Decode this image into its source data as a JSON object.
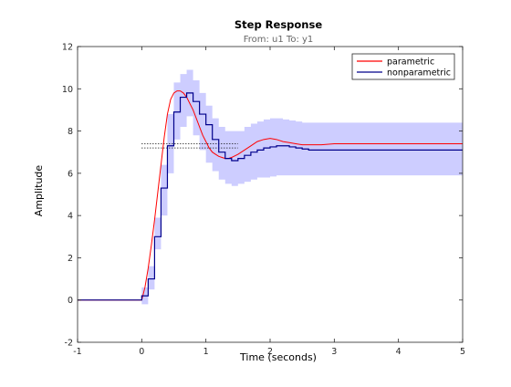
{
  "chart_data": {
    "type": "line",
    "title": "Step Response",
    "subtitle": "From: u1  To: y1",
    "xlabel": "Time (seconds)",
    "ylabel": "Amplitude",
    "xlim": [
      -1,
      5
    ],
    "ylim": [
      -2,
      12
    ],
    "xticks": [
      -1,
      0,
      1,
      2,
      3,
      4,
      5
    ],
    "yticks": [
      -2,
      0,
      2,
      4,
      6,
      8,
      10,
      12
    ],
    "grid": false,
    "legend_position": "top-right",
    "steady_state_markers": [
      7.2,
      7.4
    ],
    "series": [
      {
        "name": "parametric",
        "color": "#ff0000",
        "x": [
          -1,
          0,
          0.05,
          0.1,
          0.15,
          0.2,
          0.25,
          0.3,
          0.35,
          0.4,
          0.45,
          0.5,
          0.55,
          0.6,
          0.65,
          0.7,
          0.75,
          0.8,
          0.85,
          0.9,
          0.95,
          1.0,
          1.05,
          1.1,
          1.15,
          1.2,
          1.25,
          1.3,
          1.35,
          1.4,
          1.5,
          1.6,
          1.7,
          1.8,
          1.9,
          2.0,
          2.1,
          2.2,
          2.3,
          2.4,
          2.5,
          2.6,
          2.7,
          2.8,
          3.0,
          3.2,
          3.4,
          3.6,
          3.8,
          4.0,
          4.2,
          4.4,
          4.6,
          4.8,
          5.0
        ],
        "y": [
          0,
          0,
          0.6,
          1.5,
          2.6,
          3.8,
          5.1,
          6.4,
          7.7,
          8.8,
          9.5,
          9.8,
          9.9,
          9.9,
          9.8,
          9.6,
          9.3,
          9.0,
          8.6,
          8.2,
          7.8,
          7.5,
          7.2,
          7.0,
          6.9,
          6.8,
          6.75,
          6.7,
          6.7,
          6.75,
          6.9,
          7.1,
          7.3,
          7.5,
          7.6,
          7.65,
          7.6,
          7.5,
          7.45,
          7.4,
          7.35,
          7.35,
          7.35,
          7.35,
          7.4,
          7.4,
          7.4,
          7.4,
          7.4,
          7.4,
          7.4,
          7.4,
          7.4,
          7.4,
          7.4
        ]
      },
      {
        "name": "nonparametric",
        "color": "#00008b",
        "step": 0.1,
        "x": [
          -1,
          0,
          0.1,
          0.2,
          0.3,
          0.4,
          0.5,
          0.6,
          0.7,
          0.8,
          0.9,
          1.0,
          1.1,
          1.2,
          1.3,
          1.4,
          1.5,
          1.6,
          1.7,
          1.8,
          1.9,
          2.0,
          2.1,
          2.2,
          2.3,
          2.4,
          2.5,
          2.6,
          2.7,
          2.8,
          2.9,
          3.0,
          3.1,
          3.2,
          3.3,
          3.4,
          3.5,
          3.6,
          3.7,
          3.8,
          3.9,
          4.0,
          4.1,
          4.2,
          4.3,
          4.4,
          4.5,
          4.6,
          4.7,
          4.8,
          4.9
        ],
        "y": [
          0,
          0.2,
          1.0,
          3.0,
          5.3,
          7.3,
          8.9,
          9.6,
          9.8,
          9.4,
          8.8,
          8.3,
          7.6,
          7.0,
          6.7,
          6.6,
          6.7,
          6.85,
          7.0,
          7.1,
          7.2,
          7.25,
          7.3,
          7.3,
          7.25,
          7.2,
          7.15,
          7.1,
          7.1,
          7.1,
          7.1,
          7.1,
          7.1,
          7.1,
          7.1,
          7.1,
          7.1,
          7.1,
          7.1,
          7.1,
          7.1,
          7.1,
          7.1,
          7.1,
          7.1,
          7.1,
          7.1,
          7.1,
          7.1,
          7.1,
          7.1
        ],
        "confidence_band": {
          "color": "#c8c8ff",
          "lower": [
            0,
            -0.2,
            0.5,
            2.4,
            4.0,
            6.0,
            7.6,
            8.2,
            8.7,
            7.8,
            7.1,
            6.5,
            6.1,
            5.7,
            5.5,
            5.4,
            5.5,
            5.6,
            5.7,
            5.8,
            5.8,
            5.85,
            5.9,
            5.9,
            5.9,
            5.9,
            5.9,
            5.9,
            5.9,
            5.9,
            5.9,
            5.9,
            5.9,
            5.9,
            5.9,
            5.9,
            5.9,
            5.9,
            5.9,
            5.9,
            5.9,
            5.9,
            5.9,
            5.9,
            5.9,
            5.9,
            5.9,
            5.9,
            5.9,
            5.9,
            5.9
          ],
          "upper": [
            0,
            0.6,
            1.6,
            3.9,
            6.4,
            8.8,
            10.3,
            10.7,
            10.9,
            10.4,
            9.8,
            9.2,
            8.6,
            8.2,
            8.0,
            8.0,
            8.0,
            8.2,
            8.35,
            8.45,
            8.55,
            8.6,
            8.6,
            8.55,
            8.5,
            8.45,
            8.4,
            8.4,
            8.4,
            8.4,
            8.4,
            8.4,
            8.4,
            8.4,
            8.4,
            8.4,
            8.4,
            8.4,
            8.4,
            8.4,
            8.4,
            8.4,
            8.4,
            8.4,
            8.4,
            8.4,
            8.4,
            8.4,
            8.4,
            8.4,
            8.4
          ]
        }
      }
    ]
  }
}
